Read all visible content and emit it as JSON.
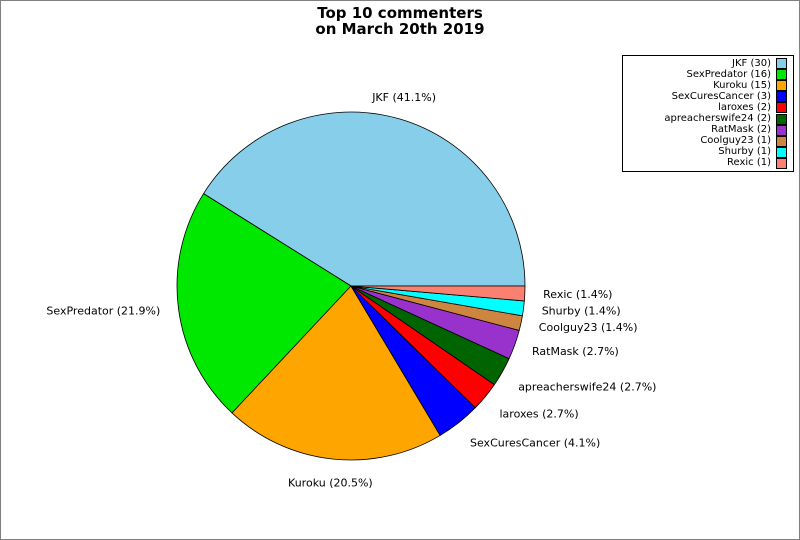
{
  "title": {
    "line1": "Top 10 commenters",
    "line2": "on March 20th 2019"
  },
  "chart_data": {
    "type": "pie",
    "title": "Top 10 commenters on March 20th 2019",
    "start_angle_deg": 0,
    "direction": "counterclockwise",
    "legend_position": "upper right",
    "edge_color": "#000000",
    "label_color": "#000000",
    "series": [
      {
        "name": "JKF",
        "count": 30,
        "percent": 41.1,
        "slice_label": "JKF (41.1%)",
        "legend_label": "JKF (30)",
        "color": "#87CEEB"
      },
      {
        "name": "SexPredator",
        "count": 16,
        "percent": 21.9,
        "slice_label": "SexPredator (21.9%)",
        "legend_label": "SexPredator (16)",
        "color": "#00E800"
      },
      {
        "name": "Kuroku",
        "count": 15,
        "percent": 20.5,
        "slice_label": "Kuroku (20.5%)",
        "legend_label": "Kuroku (15)",
        "color": "#FFA500"
      },
      {
        "name": "SexCuresCancer",
        "count": 3,
        "percent": 4.1,
        "slice_label": "SexCuresCancer (4.1%)",
        "legend_label": "SexCuresCancer (3)",
        "color": "#0000FF"
      },
      {
        "name": "laroxes",
        "count": 2,
        "percent": 2.7,
        "slice_label": "laroxes (2.7%)",
        "legend_label": "laroxes (2)",
        "color": "#FF0000"
      },
      {
        "name": "apreacherswife24",
        "count": 2,
        "percent": 2.7,
        "slice_label": "apreacherswife24 (2.7%)",
        "legend_label": "apreacherswife24 (2)",
        "color": "#006400"
      },
      {
        "name": "RatMask",
        "count": 2,
        "percent": 2.7,
        "slice_label": "RatMask (2.7%)",
        "legend_label": "RatMask (2)",
        "color": "#9932CC"
      },
      {
        "name": "Coolguy23",
        "count": 1,
        "percent": 1.4,
        "slice_label": "Coolguy23 (1.4%)",
        "legend_label": "Coolguy23 (1)",
        "color": "#CD853F"
      },
      {
        "name": "Shurby",
        "count": 1,
        "percent": 1.4,
        "slice_label": "Shurby (1.4%)",
        "legend_label": "Shurby (1)",
        "color": "#00FFFF"
      },
      {
        "name": "Rexic",
        "count": 1,
        "percent": 1.4,
        "slice_label": "Rexic (1.4%)",
        "legend_label": "Rexic (1)",
        "color": "#FA8072"
      }
    ]
  },
  "colors": {
    "background": "#FFFFFF",
    "figure_border": "#808080",
    "legend_border": "#000000"
  }
}
